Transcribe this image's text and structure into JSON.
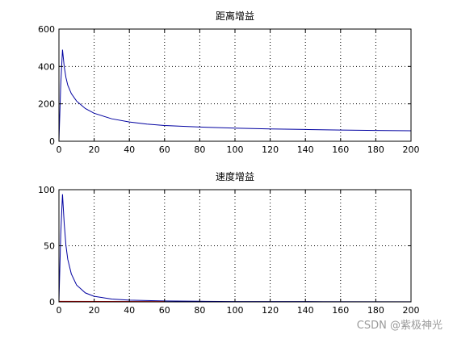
{
  "chart_data": [
    {
      "type": "line",
      "title": "距离增益",
      "xlim": [
        0,
        200
      ],
      "ylim": [
        0,
        600
      ],
      "xticks": [
        0,
        20,
        40,
        60,
        80,
        100,
        120,
        140,
        160,
        180,
        200
      ],
      "yticks": [
        0,
        200,
        400,
        600
      ],
      "grid": true,
      "series": [
        {
          "color": "#0000a0",
          "x": [
            0,
            1,
            2,
            3,
            4,
            5,
            7,
            10,
            15,
            20,
            30,
            40,
            50,
            60,
            80,
            100,
            120,
            140,
            160,
            180,
            200
          ],
          "y": [
            0,
            300,
            490,
            400,
            340,
            300,
            255,
            215,
            175,
            150,
            120,
            103,
            92,
            84,
            76,
            70,
            66,
            63,
            60,
            58,
            56
          ]
        },
        {
          "color": "#cc0000",
          "x": [
            0,
            200
          ],
          "y": [
            0,
            0
          ]
        }
      ]
    },
    {
      "type": "line",
      "title": "速度增益",
      "xlim": [
        0,
        200
      ],
      "ylim": [
        0,
        100
      ],
      "xticks": [
        0,
        20,
        40,
        60,
        80,
        100,
        120,
        140,
        160,
        180,
        200
      ],
      "yticks": [
        0,
        50,
        100
      ],
      "grid": true,
      "series": [
        {
          "color": "#0000a0",
          "x": [
            0,
            1,
            2,
            3,
            4,
            5,
            7,
            10,
            15,
            20,
            30,
            40,
            60,
            80,
            100,
            150,
            200
          ],
          "y": [
            0,
            60,
            96,
            70,
            50,
            38,
            25,
            15,
            8,
            5,
            2.5,
            1.5,
            0.8,
            0.5,
            0.3,
            0.2,
            0.1
          ]
        },
        {
          "color": "#cc0000",
          "x": [
            0,
            60
          ],
          "y": [
            0.4,
            0.3
          ]
        }
      ]
    }
  ],
  "watermark": "CSDN @紫极神光"
}
